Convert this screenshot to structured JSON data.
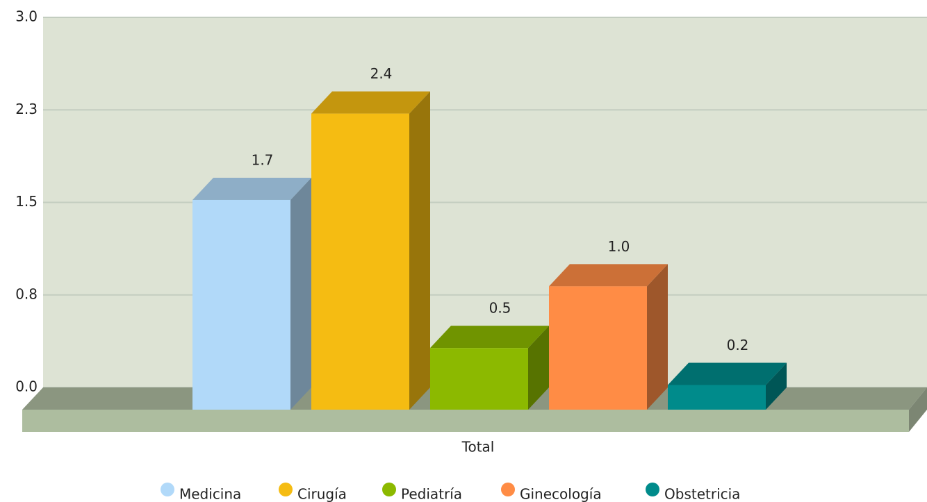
{
  "chart_data": {
    "type": "bar3d",
    "categories": [
      "Total"
    ],
    "series": [
      {
        "name": "Medicina",
        "color": "#b1d9f9",
        "values": [
          1.7
        ],
        "value_labels": [
          "1.7"
        ]
      },
      {
        "name": "Cirugía",
        "color": "#f5bc12",
        "values": [
          2.4
        ],
        "value_labels": [
          "2.4"
        ]
      },
      {
        "name": "Pediatría",
        "color": "#8cb900",
        "values": [
          0.5
        ],
        "value_labels": [
          "0.5"
        ]
      },
      {
        "name": "Ginecología",
        "color": "#ff8c45",
        "values": [
          1.0
        ],
        "value_labels": [
          "1.0"
        ]
      },
      {
        "name": "Obstetricia",
        "color": "#008b8b",
        "values": [
          0.2
        ],
        "value_labels": [
          "0.2"
        ]
      }
    ],
    "ylim": [
      0,
      3
    ],
    "yticks": [
      {
        "value": 0,
        "label": "0.0"
      },
      {
        "value": 0.75,
        "label": "0.8"
      },
      1.5,
      {
        "value": 2.25,
        "label": "2.3"
      },
      {
        "value": 3,
        "label": "3.0"
      }
    ],
    "grid": true,
    "legend": "bottom"
  }
}
